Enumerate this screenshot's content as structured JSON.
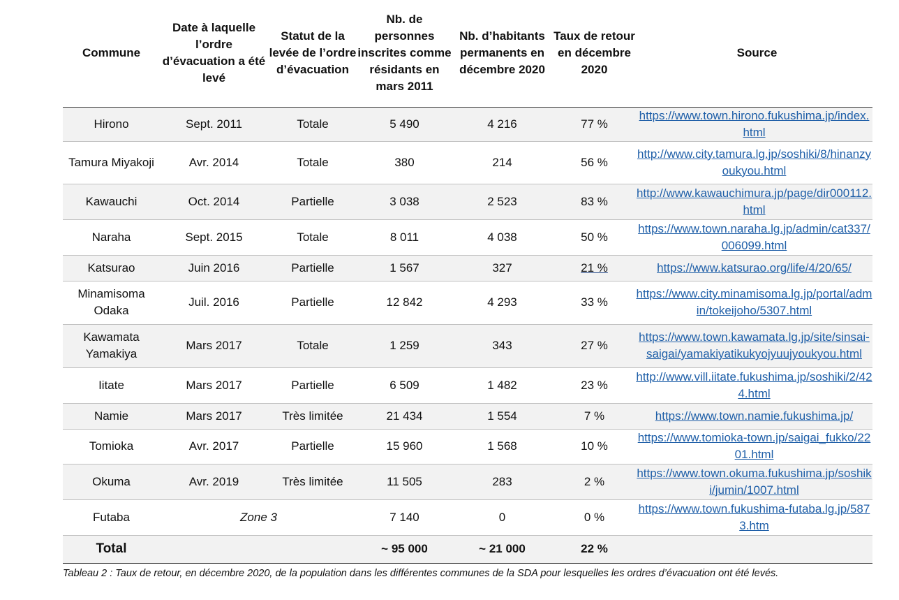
{
  "table": {
    "headers": [
      "Commune",
      "Date à laquelle l’ordre d’évacuation a été levé",
      "Statut de la levée de l’ordre d’évacuation",
      "Nb. de personnes inscrites comme résidants en mars 2011",
      "Nb. d’habitants permanents en décembre 2020",
      "Taux de retour en décembre 2020",
      "Source"
    ],
    "rows": [
      {
        "commune": "Hirono",
        "date": "Sept. 2011",
        "status": "Totale",
        "residents_2011": "5 490",
        "inhabitants_2020": "4 216",
        "return_rate": "77 %",
        "source": "https://www.town.hirono.fukushima.jp/index.html"
      },
      {
        "commune": "Tamura Miyakoji",
        "date": "Avr. 2014",
        "status": "Totale",
        "residents_2011": "380",
        "inhabitants_2020": "214",
        "return_rate": "56 %",
        "source": "http://www.city.tamura.lg.jp/soshiki/8/hinanzyoukyou.html"
      },
      {
        "commune": "Kawauchi",
        "date": "Oct. 2014",
        "status": "Partielle",
        "residents_2011": "3 038",
        "inhabitants_2020": "2 523",
        "return_rate": "83 %",
        "source": "http://www.kawauchimura.jp/page/dir000112.html"
      },
      {
        "commune": "Naraha",
        "date": "Sept. 2015",
        "status": "Totale",
        "residents_2011": "8 011",
        "inhabitants_2020": "4 038",
        "return_rate": "50 %",
        "source": "https://www.town.naraha.lg.jp/admin/cat337/006099.html"
      },
      {
        "commune": "Katsurao",
        "date": "Juin 2016",
        "status": "Partielle",
        "residents_2011": "1 567",
        "inhabitants_2020": "327",
        "return_rate": "21  %",
        "source": "https://www.katsurao.org/life/4/20/65/"
      },
      {
        "commune": "Minamisoma Odaka",
        "date": "Juil. 2016",
        "status": "Partielle",
        "residents_2011": "12 842",
        "inhabitants_2020": "4 293",
        "return_rate": "33 %",
        "source": "https://www.city.minamisoma.lg.jp/portal/admin/tokeijoho/5307.html"
      },
      {
        "commune": "Kawamata Yamakiya",
        "date": "Mars 2017",
        "status": "Totale",
        "residents_2011": "1 259",
        "inhabitants_2020": "343",
        "return_rate": "27 %",
        "source": "https://www.town.kawamata.lg.jp/site/sinsai-saigai/yamakiyatikukyojyuujyoukyou.html"
      },
      {
        "commune": "Iitate",
        "date": "Mars 2017",
        "status": "Partielle",
        "residents_2011": "6 509",
        "inhabitants_2020": "1 482",
        "return_rate": "23 %",
        "source": "http://www.vill.iitate.fukushima.jp/soshiki/2/424.html"
      },
      {
        "commune": "Namie",
        "date": "Mars 2017",
        "status": "Très limitée",
        "residents_2011": "21 434",
        "inhabitants_2020": "1 554",
        "return_rate": "7 %",
        "source": "https://www.town.namie.fukushima.jp/"
      },
      {
        "commune": "Tomioka",
        "date": "Avr. 2017",
        "status": "Partielle",
        "residents_2011": "15 960",
        "inhabitants_2020": "1 568",
        "return_rate": "10 %",
        "source": "https://www.tomioka-town.jp/saigai_fukko/2201.html"
      },
      {
        "commune": "Okuma",
        "date": "Avr. 2019",
        "status": "Très limitée",
        "residents_2011": "11 505",
        "inhabitants_2020": "283",
        "return_rate": "2 %",
        "source": "https://www.town.okuma.fukushima.jp/soshiki/jumin/1007.html"
      }
    ],
    "futaba": {
      "commune": "Futaba",
      "zone": "Zone 3",
      "residents_2011": "7 140",
      "inhabitants_2020": "0",
      "return_rate": "0 %",
      "source": "https://www.town.fukushima-futaba.lg.jp/5873.htm"
    },
    "total": {
      "label": "Total",
      "residents_2011": "~ 95 000",
      "inhabitants_2020": "~ 21 000",
      "return_rate": "22 %"
    }
  },
  "caption": "Tableau 2 : Taux de retour, en décembre 2020, de la population dans les différentes communes de la SDA pour lesquelles les ordres d’évacuation ont été levés."
}
